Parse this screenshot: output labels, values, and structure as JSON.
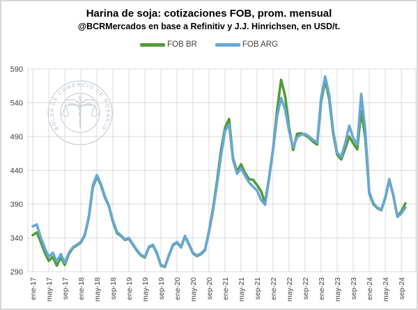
{
  "header": {
    "title": "Harina de soja: cotizaciones FOB, prom. mensual",
    "subtitle": "@BCRMercados en base a Refinitiv y J.J. Hinrichsen, en USD/t."
  },
  "watermark": {
    "text": "BOLSA DE COMERCIO DE ROSARIO"
  },
  "colors": {
    "grid": "#d9d9d9",
    "axis_text": "#404040",
    "fob_br": "#4f9c35",
    "fob_arg": "#68a7d8"
  },
  "chart_data": {
    "type": "line",
    "title": "Harina de soja: cotizaciones FOB, prom. mensual",
    "subtitle": "@BCRMercados en base a Refinitiv y J.J. Hinrichsen, en USD/t.",
    "unit": "USD/t",
    "grid": true,
    "legend_position": "top",
    "x_start": "ene-17",
    "x_end": "oct-24",
    "x_frequency": "monthly",
    "x_tick_labels": [
      "ene-17",
      "may-17",
      "sep-17",
      "ene-18",
      "may-18",
      "sep-18",
      "ene-19",
      "may-19",
      "sep-19",
      "ene-20",
      "may-20",
      "sep-20",
      "ene-21",
      "may-21",
      "sep-21",
      "ene-22",
      "may-22",
      "sep-22",
      "ene-23",
      "may-23",
      "sep-23",
      "ene-24",
      "may-24",
      "sep-24"
    ],
    "ylim": [
      290,
      590
    ],
    "y_tick_labels": [
      290,
      340,
      390,
      440,
      490,
      540,
      590
    ],
    "series": [
      {
        "name": "FOB BR",
        "color": "#4f9c35",
        "values": [
          344,
          348,
          334,
          318,
          306,
          312,
          299,
          311,
          300,
          316,
          325,
          329,
          333,
          344,
          370,
          415,
          431,
          418,
          400,
          387,
          364,
          347,
          343,
          337,
          339,
          330,
          321,
          314,
          311,
          326,
          329,
          317,
          299,
          297,
          314,
          329,
          333,
          326,
          342,
          330,
          317,
          313,
          316,
          322,
          350,
          384,
          424,
          470,
          503,
          516,
          458,
          438,
          449,
          436,
          427,
          426,
          418,
          409,
          392,
          430,
          472,
          530,
          574,
          550,
          503,
          470,
          494,
          495,
          492,
          488,
          482,
          478,
          542,
          573,
          546,
          494,
          463,
          456,
          472,
          490,
          480,
          471,
          528,
          488,
          406,
          390,
          384,
          381,
          399,
          426,
          403,
          372,
          379,
          391
        ]
      },
      {
        "name": "FOB ARG",
        "color": "#68a7d8",
        "values": [
          357,
          360,
          341,
          325,
          312,
          318,
          305,
          316,
          303,
          318,
          326,
          330,
          334,
          345,
          372,
          418,
          433,
          420,
          402,
          388,
          366,
          349,
          344,
          338,
          340,
          331,
          322,
          315,
          312,
          327,
          330,
          318,
          300,
          298,
          315,
          330,
          334,
          327,
          343,
          331,
          318,
          314,
          317,
          323,
          348,
          380,
          419,
          462,
          498,
          508,
          455,
          435,
          443,
          432,
          422,
          416,
          410,
          396,
          389,
          428,
          470,
          520,
          547,
          530,
          498,
          474,
          489,
          493,
          494,
          490,
          485,
          481,
          548,
          579,
          552,
          498,
          466,
          460,
          480,
          506,
          488,
          478,
          553,
          500,
          408,
          392,
          385,
          382,
          400,
          427,
          404,
          371,
          376,
          385
        ]
      }
    ]
  }
}
